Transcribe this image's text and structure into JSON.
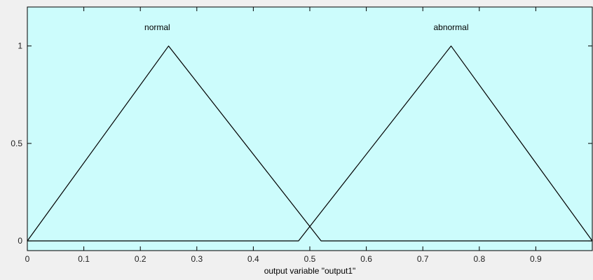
{
  "chart_data": {
    "type": "line",
    "xlabel": "output variable \"output1\"",
    "ylabel": "",
    "xlim": [
      0,
      1
    ],
    "ylim": [
      -0.05,
      1.2
    ],
    "x_ticks": [
      0,
      0.1,
      0.2,
      0.3,
      0.4,
      0.5,
      0.6,
      0.7,
      0.8,
      0.9
    ],
    "x_tick_labels": [
      "0",
      "0.1",
      "0.2",
      "0.3",
      "0.4",
      "0.5",
      "0.6",
      "0.7",
      "0.8",
      "0.9"
    ],
    "y_ticks": [
      0,
      0.5,
      1
    ],
    "y_tick_labels": [
      "0",
      "0.5",
      "1"
    ],
    "grid": false,
    "series": [
      {
        "name": "normal",
        "x": [
          0,
          0.25,
          0.52
        ],
        "y": [
          0,
          1,
          0
        ],
        "label_x": 0.23
      },
      {
        "name": "abnormal",
        "x": [
          0.48,
          0.75,
          1
        ],
        "y": [
          0,
          1,
          0
        ],
        "label_x": 0.75
      }
    ],
    "colors": {
      "plot_background": "#ccfcfc",
      "line": "#000000",
      "frame_background": "#f0f0f0"
    }
  }
}
